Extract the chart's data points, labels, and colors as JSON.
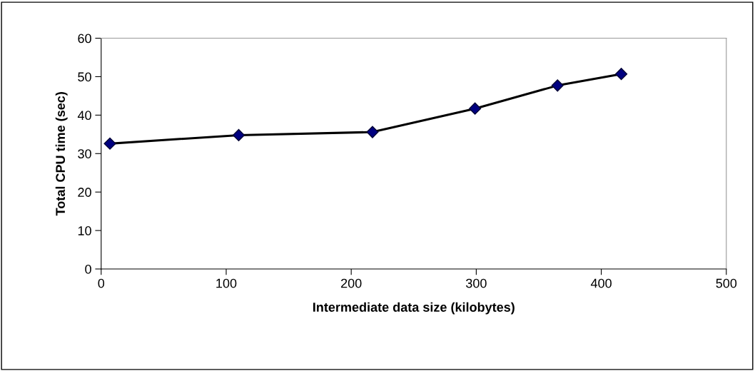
{
  "chart_data": {
    "type": "line",
    "xlabel": "Intermediate data size (kilobytes)",
    "ylabel": "Total CPU time (sec)",
    "x": [
      7,
      110,
      217,
      299,
      365,
      416
    ],
    "series": [
      {
        "color": "#000000",
        "values": [
          32.6,
          34.8,
          35.6,
          41.7,
          47.7,
          50.7
        ]
      }
    ],
    "marker": "diamond",
    "line_style": "solid",
    "xlim": [
      0,
      500
    ],
    "xticks": [
      0,
      100,
      200,
      300,
      400,
      500
    ],
    "ylim": [
      0,
      60
    ],
    "yticks": [
      0,
      10,
      20,
      30,
      40,
      50,
      60
    ],
    "grid": false,
    "legend": false
  }
}
